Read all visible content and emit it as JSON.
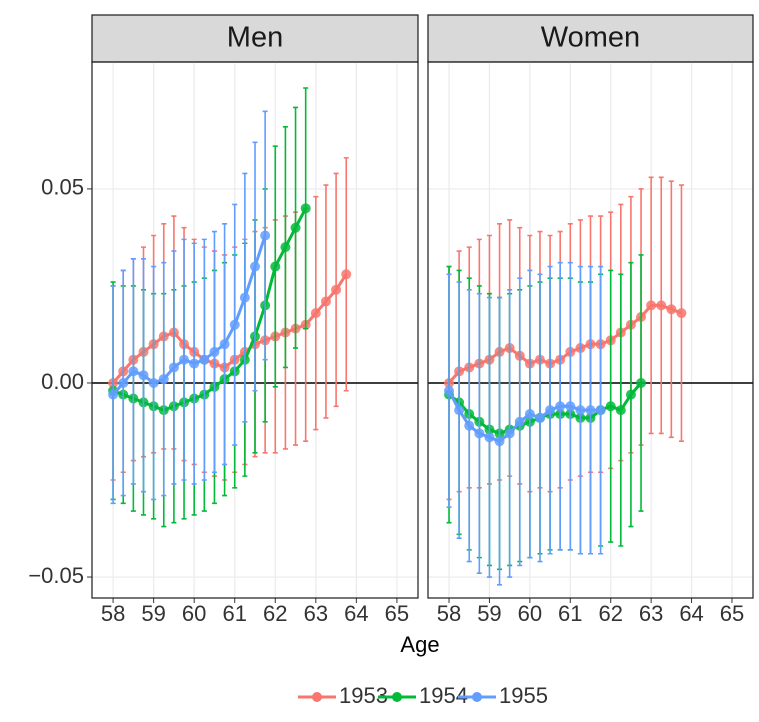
{
  "chart_data": [
    {
      "type": "errorbar",
      "title": "Men",
      "xlabel": "Age",
      "xlim": [
        57.48,
        65.52
      ],
      "ylim": [
        -0.0554,
        0.0827
      ],
      "xticks": [
        58,
        59,
        60,
        61,
        62,
        63,
        64,
        65
      ],
      "yticks": [
        {
          "value": -0.05,
          "label": "−0.05"
        },
        {
          "value": 0,
          "label": "0.00"
        },
        {
          "value": 0.05,
          "label": "0.05"
        }
      ],
      "reference_line": 0,
      "grid": true,
      "series": [
        {
          "name": "1953",
          "color": "#f8766d",
          "x": [
            58,
            58.25,
            58.5,
            58.75,
            59,
            59.25,
            59.5,
            59.75,
            60,
            60.25,
            60.5,
            60.75,
            61,
            61.25,
            61.5,
            61.75,
            62,
            62.25,
            62.5,
            62.75,
            63,
            63.25,
            63.5,
            63.75
          ],
          "values": [
            0.0,
            0.003,
            0.006,
            0.008,
            0.01,
            0.012,
            0.013,
            0.01,
            0.008,
            0.006,
            0.005,
            0.004,
            0.006,
            0.008,
            0.01,
            0.011,
            0.012,
            0.013,
            0.014,
            0.015,
            0.018,
            0.021,
            0.024,
            0.028
          ],
          "errors": [
            0.025,
            0.026,
            0.026,
            0.027,
            0.028,
            0.029,
            0.03,
            0.03,
            0.029,
            0.029,
            0.029,
            0.029,
            0.029,
            0.029,
            0.029,
            0.029,
            0.03,
            0.03,
            0.03,
            0.03,
            0.03,
            0.03,
            0.03,
            0.03
          ]
        },
        {
          "name": "1954",
          "color": "#00ba38",
          "x": [
            58,
            58.25,
            58.5,
            58.75,
            59,
            59.25,
            59.5,
            59.75,
            60,
            60.25,
            60.5,
            60.75,
            61,
            61.25,
            61.5,
            61.75,
            62,
            62.25,
            62.5,
            62.75
          ],
          "values": [
            -0.002,
            -0.003,
            -0.004,
            -0.005,
            -0.006,
            -0.007,
            -0.006,
            -0.005,
            -0.004,
            -0.003,
            -0.001,
            0.001,
            0.003,
            0.006,
            0.012,
            0.02,
            0.03,
            0.035,
            0.04,
            0.045
          ],
          "errors": [
            0.028,
            0.028,
            0.029,
            0.029,
            0.029,
            0.03,
            0.03,
            0.03,
            0.03,
            0.03,
            0.03,
            0.03,
            0.03,
            0.03,
            0.03,
            0.03,
            0.031,
            0.031,
            0.031,
            0.031
          ]
        },
        {
          "name": "1955",
          "color": "#619cff",
          "x": [
            58,
            58.25,
            58.5,
            58.75,
            59,
            59.25,
            59.5,
            59.75,
            60,
            60.25,
            60.5,
            60.75,
            61,
            61.25,
            61.5,
            61.75
          ],
          "values": [
            -0.003,
            0.0,
            0.003,
            0.002,
            0.0,
            0.001,
            0.004,
            0.006,
            0.005,
            0.006,
            0.008,
            0.01,
            0.015,
            0.022,
            0.03,
            0.038
          ],
          "errors": [
            0.028,
            0.029,
            0.029,
            0.03,
            0.03,
            0.03,
            0.03,
            0.031,
            0.031,
            0.031,
            0.031,
            0.031,
            0.031,
            0.032,
            0.032,
            0.032
          ]
        }
      ]
    },
    {
      "type": "errorbar",
      "title": "Women",
      "xlim": [
        57.48,
        65.52
      ],
      "ylim": [
        -0.0554,
        0.0827
      ],
      "xticks": [
        58,
        59,
        60,
        61,
        62,
        63,
        64,
        65
      ],
      "yticks": [
        -0.05,
        0,
        0.05
      ],
      "reference_line": 0,
      "grid": true,
      "series": [
        {
          "color": "#f8766d",
          "x": [
            58,
            58.25,
            58.5,
            58.75,
            59,
            59.25,
            59.5,
            59.75,
            60,
            60.25,
            60.5,
            60.75,
            61,
            61.25,
            61.5,
            61.75,
            62,
            62.25,
            62.5,
            62.75,
            63,
            63.25,
            63.5,
            63.75
          ],
          "values": [
            0.0,
            0.003,
            0.004,
            0.005,
            0.006,
            0.008,
            0.009,
            0.007,
            0.005,
            0.006,
            0.005,
            0.006,
            0.008,
            0.009,
            0.01,
            0.01,
            0.011,
            0.013,
            0.015,
            0.017,
            0.02,
            0.02,
            0.019,
            0.018
          ],
          "errors": [
            0.03,
            0.031,
            0.031,
            0.032,
            0.032,
            0.033,
            0.033,
            0.033,
            0.033,
            0.033,
            0.033,
            0.033,
            0.033,
            0.033,
            0.033,
            0.033,
            0.033,
            0.033,
            0.033,
            0.033,
            0.033,
            0.033,
            0.033,
            0.033
          ]
        },
        {
          "color": "#00ba38",
          "x": [
            58,
            58.25,
            58.5,
            58.75,
            59,
            59.25,
            59.5,
            59.75,
            60,
            60.25,
            60.5,
            60.75,
            61,
            61.25,
            61.5,
            61.75,
            62,
            62.25,
            62.5,
            62.75
          ],
          "values": [
            -0.003,
            -0.005,
            -0.008,
            -0.01,
            -0.012,
            -0.013,
            -0.012,
            -0.011,
            -0.01,
            -0.009,
            -0.008,
            -0.008,
            -0.008,
            -0.009,
            -0.009,
            -0.007,
            -0.006,
            -0.007,
            -0.003,
            0.0
          ],
          "errors": [
            0.033,
            0.034,
            0.035,
            0.035,
            0.035,
            0.035,
            0.035,
            0.035,
            0.035,
            0.035,
            0.035,
            0.035,
            0.035,
            0.035,
            0.035,
            0.035,
            0.035,
            0.035,
            0.034,
            0.033
          ]
        },
        {
          "color": "#619cff",
          "x": [
            58,
            58.25,
            58.5,
            58.75,
            59,
            59.25,
            59.5,
            59.75,
            60,
            60.25,
            60.5,
            60.75,
            61,
            61.25,
            61.5,
            61.75
          ],
          "values": [
            -0.002,
            -0.007,
            -0.011,
            -0.013,
            -0.014,
            -0.015,
            -0.013,
            -0.01,
            -0.008,
            -0.009,
            -0.007,
            -0.006,
            -0.006,
            -0.007,
            -0.007,
            -0.007
          ],
          "errors": [
            0.03,
            0.033,
            0.035,
            0.036,
            0.036,
            0.037,
            0.037,
            0.037,
            0.037,
            0.037,
            0.037,
            0.037,
            0.037,
            0.037,
            0.037,
            0.037
          ]
        }
      ]
    }
  ]
}
